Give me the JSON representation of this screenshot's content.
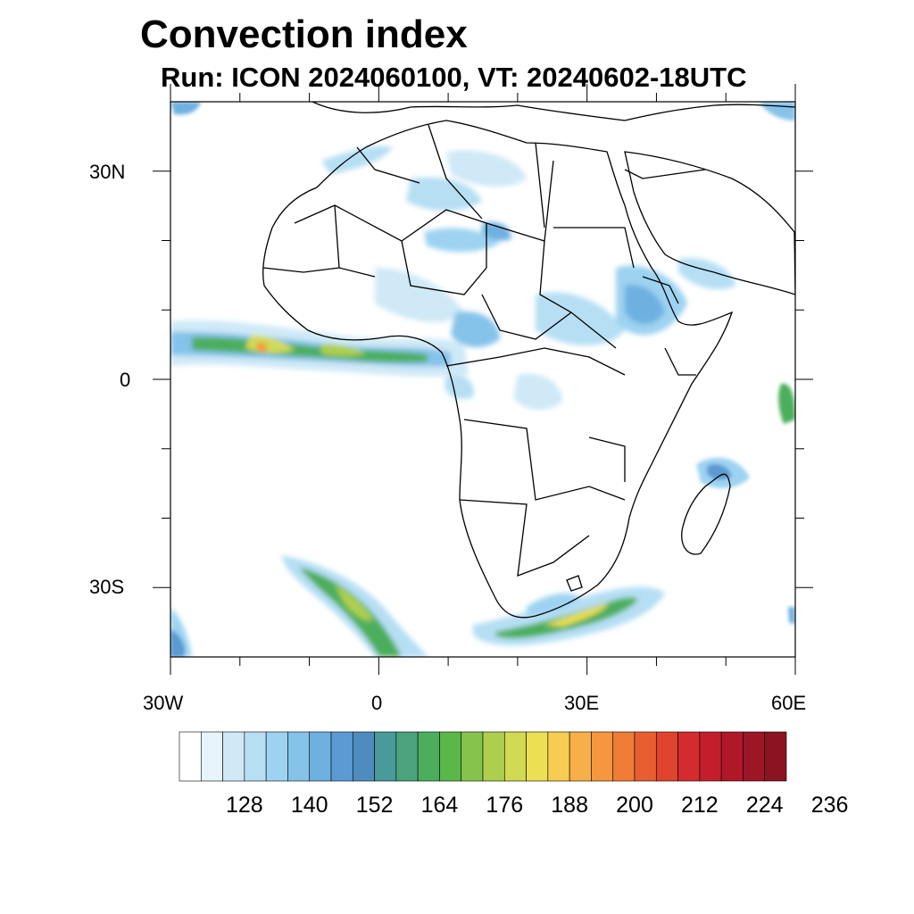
{
  "header": {
    "title": "Convection index",
    "subtitle": "Run: ICON 2024060100,  VT: 20240602-18UTC"
  },
  "axes": {
    "lat_labels": [
      "30N",
      "0",
      "30S"
    ],
    "lon_labels": [
      "30W",
      "0",
      "30E",
      "60E"
    ]
  },
  "colorbar": {
    "colors": [
      "#ffffff",
      "#e8f4fb",
      "#cfe9f7",
      "#b6dff4",
      "#9dd3f1",
      "#86c3ea",
      "#6eb0e0",
      "#5b9ad2",
      "#4e8cc0",
      "#4a9a9a",
      "#4aa37a",
      "#4cae5c",
      "#5ab74a",
      "#86c34c",
      "#aecf4e",
      "#d1da52",
      "#ecdf54",
      "#f6cd52",
      "#f6b048",
      "#f6963e",
      "#f07c36",
      "#e85e30",
      "#e0442e",
      "#d42c2e",
      "#c41e2c",
      "#b0182a",
      "#9c1626",
      "#8c1420"
    ],
    "tick_labels": [
      "128",
      "140",
      "152",
      "164",
      "176",
      "188",
      "200",
      "212",
      "224",
      "236"
    ]
  },
  "map_data": {
    "lon_range": [
      -30,
      60
    ],
    "lat_range": [
      -40,
      40
    ],
    "lat_ticks": [
      30,
      20,
      10,
      0,
      -10,
      -20,
      -30
    ],
    "lon_ticks": [
      -30,
      -20,
      -10,
      0,
      10,
      20,
      30,
      40,
      50,
      60
    ]
  }
}
